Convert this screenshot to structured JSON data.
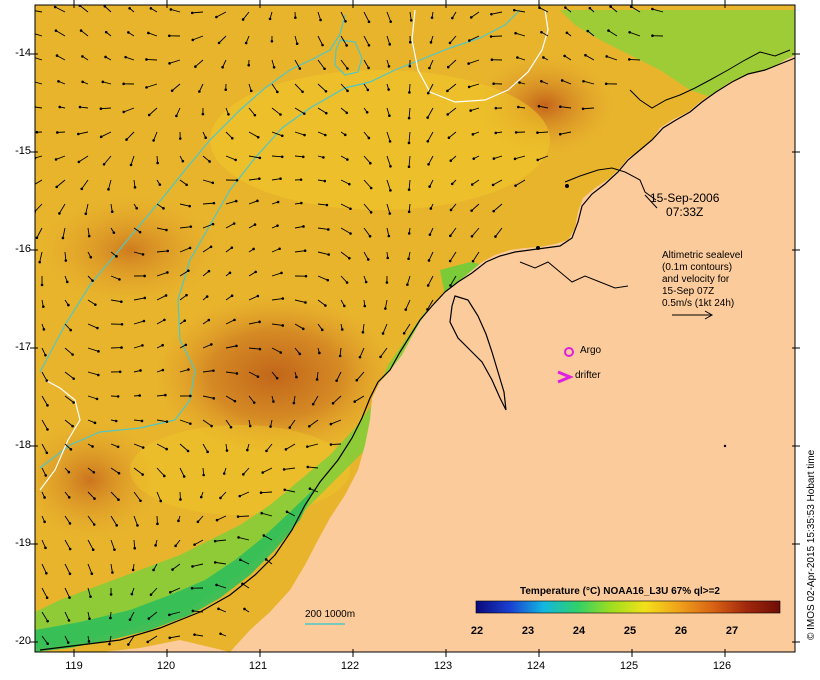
{
  "map": {
    "date_line1": "15-Sep-2006",
    "date_line2": "07:33Z",
    "altimetry_lines": [
      "Altimetric sealevel",
      "(0.1m contours)",
      "and velocity for",
      "15-Sep 07Z",
      "0.5m/s (1kt 24h)"
    ],
    "argo_label": "Argo",
    "drifter_label": "drifter",
    "contour_label": "200  1000m",
    "credit": "© IMOS 02-Apr-2015 15:35:53 Hobart time",
    "colors": {
      "land": "#fccb9b",
      "argo": "#e020e0",
      "contour_200": "#4fc7c7",
      "contour_1000": "#ffffff"
    }
  },
  "axes": {
    "y_ticks": [
      "-14",
      "-15",
      "-16",
      "-17",
      "-18",
      "-19",
      "-20"
    ],
    "x_ticks": [
      "119",
      "120",
      "121",
      "122",
      "123",
      "124",
      "125",
      "126"
    ]
  },
  "colorbar": {
    "title": "Temperature (°C) NOAA16_L3U 67% ql>=2",
    "ticks": [
      "22",
      "23",
      "24",
      "25",
      "26",
      "27"
    ],
    "stops": [
      "#0a0a7a",
      "#1a3fd0",
      "#12b7e0",
      "#2fd06a",
      "#9ede1e",
      "#f2e01a",
      "#f0a21a",
      "#d96414",
      "#a2280c",
      "#6e0e06"
    ]
  }
}
